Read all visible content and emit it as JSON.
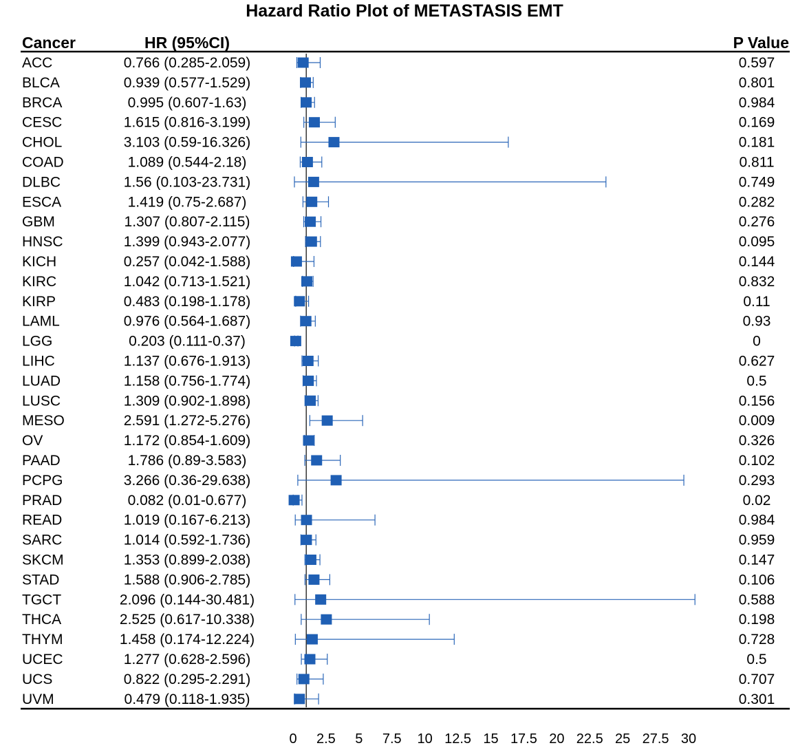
{
  "chart_data": {
    "type": "forest",
    "title": "Hazard Ratio Plot of METASTASIS EMT",
    "columns": {
      "cancer": "Cancer",
      "hr": "HR (95%CI)",
      "p": "P Value"
    },
    "reference_line": 1,
    "xlim": [
      0,
      30
    ],
    "xticks": [
      "0",
      "2.5",
      "5",
      "7.5",
      "10",
      "12.5",
      "15",
      "17.5",
      "20",
      "22.5",
      "25",
      "27.5",
      "30"
    ],
    "colors": {
      "marker": "#1f5fb4",
      "line": "#2a66b8",
      "axis": "#000000"
    },
    "rows": [
      {
        "cancer": "ACC",
        "hr": 0.766,
        "lo": 0.285,
        "hi": 2.059,
        "hr_text": "0.766 (0.285-2.059)",
        "p": "0.597"
      },
      {
        "cancer": "BLCA",
        "hr": 0.939,
        "lo": 0.577,
        "hi": 1.529,
        "hr_text": "0.939 (0.577-1.529)",
        "p": "0.801"
      },
      {
        "cancer": "BRCA",
        "hr": 0.995,
        "lo": 0.607,
        "hi": 1.63,
        "hr_text": "0.995 (0.607-1.63)",
        "p": "0.984"
      },
      {
        "cancer": "CESC",
        "hr": 1.615,
        "lo": 0.816,
        "hi": 3.199,
        "hr_text": "1.615 (0.816-3.199)",
        "p": "0.169"
      },
      {
        "cancer": "CHOL",
        "hr": 3.103,
        "lo": 0.59,
        "hi": 16.326,
        "hr_text": "3.103 (0.59-16.326)",
        "p": "0.181"
      },
      {
        "cancer": "COAD",
        "hr": 1.089,
        "lo": 0.544,
        "hi": 2.18,
        "hr_text": "1.089 (0.544-2.18)",
        "p": "0.811"
      },
      {
        "cancer": "DLBC",
        "hr": 1.56,
        "lo": 0.103,
        "hi": 23.731,
        "hr_text": "1.56 (0.103-23.731)",
        "p": "0.749"
      },
      {
        "cancer": "ESCA",
        "hr": 1.419,
        "lo": 0.75,
        "hi": 2.687,
        "hr_text": "1.419 (0.75-2.687)",
        "p": "0.282"
      },
      {
        "cancer": "GBM",
        "hr": 1.307,
        "lo": 0.807,
        "hi": 2.115,
        "hr_text": "1.307 (0.807-2.115)",
        "p": "0.276"
      },
      {
        "cancer": "HNSC",
        "hr": 1.399,
        "lo": 0.943,
        "hi": 2.077,
        "hr_text": "1.399 (0.943-2.077)",
        "p": "0.095"
      },
      {
        "cancer": "KICH",
        "hr": 0.257,
        "lo": 0.042,
        "hi": 1.588,
        "hr_text": "0.257 (0.042-1.588)",
        "p": "0.144"
      },
      {
        "cancer": "KIRC",
        "hr": 1.042,
        "lo": 0.713,
        "hi": 1.521,
        "hr_text": "1.042 (0.713-1.521)",
        "p": "0.832"
      },
      {
        "cancer": "KIRP",
        "hr": 0.483,
        "lo": 0.198,
        "hi": 1.178,
        "hr_text": "0.483 (0.198-1.178)",
        "p": "0.11"
      },
      {
        "cancer": "LAML",
        "hr": 0.976,
        "lo": 0.564,
        "hi": 1.687,
        "hr_text": "0.976 (0.564-1.687)",
        "p": "0.93"
      },
      {
        "cancer": "LGG",
        "hr": 0.203,
        "lo": 0.111,
        "hi": 0.37,
        "hr_text": "0.203 (0.111-0.37)",
        "p": "0"
      },
      {
        "cancer": "LIHC",
        "hr": 1.137,
        "lo": 0.676,
        "hi": 1.913,
        "hr_text": "1.137 (0.676-1.913)",
        "p": "0.627"
      },
      {
        "cancer": "LUAD",
        "hr": 1.158,
        "lo": 0.756,
        "hi": 1.774,
        "hr_text": "1.158 (0.756-1.774)",
        "p": "0.5"
      },
      {
        "cancer": "LUSC",
        "hr": 1.309,
        "lo": 0.902,
        "hi": 1.898,
        "hr_text": "1.309 (0.902-1.898)",
        "p": "0.156"
      },
      {
        "cancer": "MESO",
        "hr": 2.591,
        "lo": 1.272,
        "hi": 5.276,
        "hr_text": "2.591 (1.272-5.276)",
        "p": "0.009"
      },
      {
        "cancer": "OV",
        "hr": 1.172,
        "lo": 0.854,
        "hi": 1.609,
        "hr_text": "1.172 (0.854-1.609)",
        "p": "0.326"
      },
      {
        "cancer": "PAAD",
        "hr": 1.786,
        "lo": 0.89,
        "hi": 3.583,
        "hr_text": "1.786 (0.89-3.583)",
        "p": "0.102"
      },
      {
        "cancer": "PCPG",
        "hr": 3.266,
        "lo": 0.36,
        "hi": 29.638,
        "hr_text": "3.266 (0.36-29.638)",
        "p": "0.293"
      },
      {
        "cancer": "PRAD",
        "hr": 0.082,
        "lo": 0.01,
        "hi": 0.677,
        "hr_text": "0.082 (0.01-0.677)",
        "p": "0.02"
      },
      {
        "cancer": "READ",
        "hr": 1.019,
        "lo": 0.167,
        "hi": 6.213,
        "hr_text": "1.019 (0.167-6.213)",
        "p": "0.984"
      },
      {
        "cancer": "SARC",
        "hr": 1.014,
        "lo": 0.592,
        "hi": 1.736,
        "hr_text": "1.014 (0.592-1.736)",
        "p": "0.959"
      },
      {
        "cancer": "SKCM",
        "hr": 1.353,
        "lo": 0.899,
        "hi": 2.038,
        "hr_text": "1.353 (0.899-2.038)",
        "p": "0.147"
      },
      {
        "cancer": "STAD",
        "hr": 1.588,
        "lo": 0.906,
        "hi": 2.785,
        "hr_text": "1.588 (0.906-2.785)",
        "p": "0.106"
      },
      {
        "cancer": "TGCT",
        "hr": 2.096,
        "lo": 0.144,
        "hi": 30.481,
        "hr_text": "2.096 (0.144-30.481)",
        "p": "0.588"
      },
      {
        "cancer": "THCA",
        "hr": 2.525,
        "lo": 0.617,
        "hi": 10.338,
        "hr_text": "2.525 (0.617-10.338)",
        "p": "0.198"
      },
      {
        "cancer": "THYM",
        "hr": 1.458,
        "lo": 0.174,
        "hi": 12.224,
        "hr_text": "1.458 (0.174-12.224)",
        "p": "0.728"
      },
      {
        "cancer": "UCEC",
        "hr": 1.277,
        "lo": 0.628,
        "hi": 2.596,
        "hr_text": "1.277 (0.628-2.596)",
        "p": "0.5"
      },
      {
        "cancer": "UCS",
        "hr": 0.822,
        "lo": 0.295,
        "hi": 2.291,
        "hr_text": "0.822 (0.295-2.291)",
        "p": "0.707"
      },
      {
        "cancer": "UVM",
        "hr": 0.479,
        "lo": 0.118,
        "hi": 1.935,
        "hr_text": "0.479 (0.118-1.935)",
        "p": "0.301"
      }
    ]
  }
}
